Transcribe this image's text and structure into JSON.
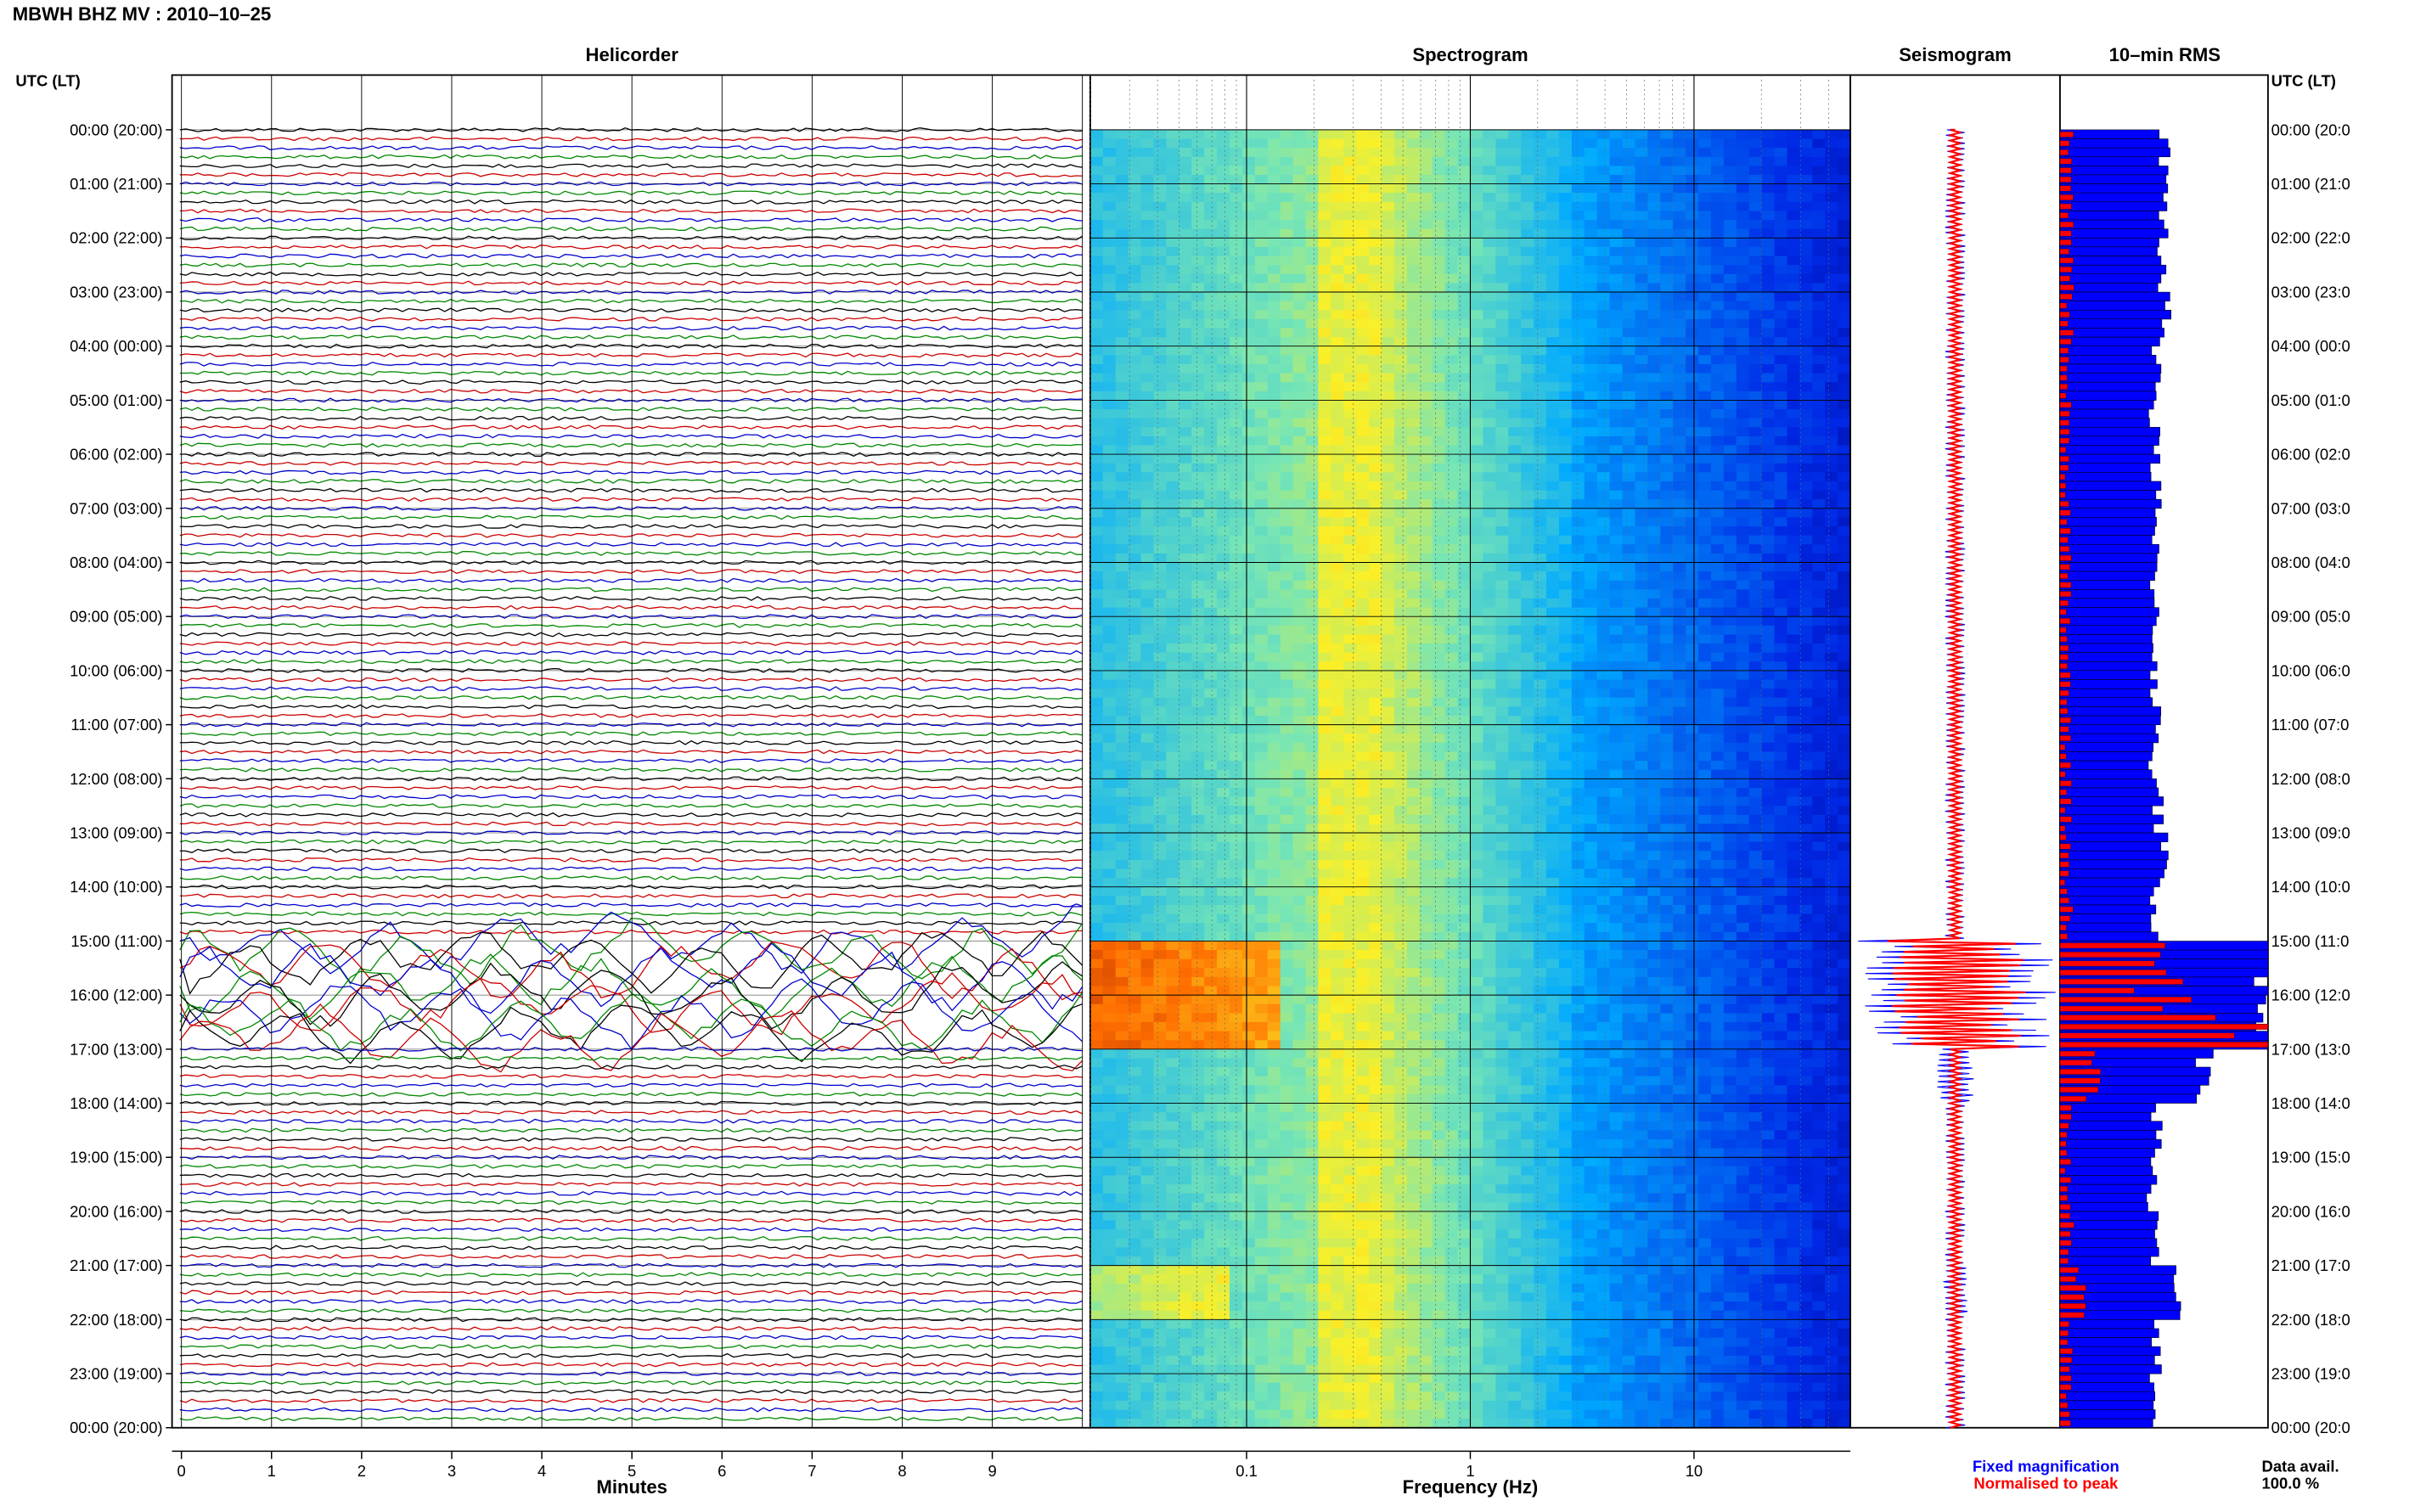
{
  "title": "MBWH BHZ MV : 2010–10–25",
  "utc_label": "UTC (LT)",
  "panels": {
    "helicorder": "Helicorder",
    "spectrogram": "Spectrogram",
    "seismogram": "Seismogram",
    "rms": "10–min RMS"
  },
  "time_labels": [
    "00:00 (20:00)",
    "01:00 (21:00)",
    "02:00 (22:00)",
    "03:00 (23:00)",
    "04:00 (00:00)",
    "05:00 (01:00)",
    "06:00 (02:00)",
    "07:00 (03:00)",
    "08:00 (04:00)",
    "09:00 (05:00)",
    "10:00 (06:00)",
    "11:00 (07:00)",
    "12:00 (08:00)",
    "13:00 (09:00)",
    "14:00 (10:00)",
    "15:00 (11:00)",
    "16:00 (12:00)",
    "17:00 (13:00)",
    "18:00 (14:00)",
    "19:00 (15:00)",
    "20:00 (16:00)",
    "21:00 (17:00)",
    "22:00 (18:00)",
    "23:00 (19:00)",
    "00:00 (20:00)"
  ],
  "time_labels_right": [
    "00:00 (20:0",
    "01:00 (21:0",
    "02:00 (22:0",
    "03:00 (23:0",
    "04:00 (00:0",
    "05:00 (01:0",
    "06:00 (02:0",
    "07:00 (03:0",
    "08:00 (04:0",
    "09:00 (05:0",
    "10:00 (06:0",
    "11:00 (07:0",
    "12:00 (08:0",
    "13:00 (09:0",
    "14:00 (10:0",
    "15:00 (11:0",
    "16:00 (12:0",
    "17:00 (13:0",
    "18:00 (14:0",
    "19:00 (15:0",
    "20:00 (16:0",
    "21:00 (17:0",
    "22:00 (18:0",
    "23:00 (19:0",
    "00:00 (20:0"
  ],
  "x_axis": {
    "helicorder_label": "Minutes",
    "helicorder_ticks": [
      "0",
      "1",
      "2",
      "3",
      "4",
      "5",
      "6",
      "7",
      "8",
      "9"
    ],
    "spectrogram_label": "Frequency (Hz)",
    "spectrogram_ticks": [
      "0.1",
      "1",
      "10"
    ]
  },
  "legend": {
    "fixed": "Fixed magnification",
    "normalised": "Normalised to peak",
    "fixed_color": "#0000ff",
    "normalised_color": "#ff0000"
  },
  "data_avail": {
    "label": "Data avail.",
    "value": "100.0 %"
  },
  "chart_data": [
    {
      "type": "line",
      "title": "Helicorder",
      "xlabel": "Minutes",
      "xlim": [
        0,
        10
      ],
      "ylim": [
        0,
        24
      ],
      "trace_colors": [
        "#000000",
        "#cc0000",
        "#0000cc",
        "#008800"
      ],
      "traces_per_hour": 6,
      "high_amplitude_hours": [
        15,
        17
      ]
    },
    {
      "type": "heatmap",
      "title": "Spectrogram",
      "xlabel": "Frequency (Hz)",
      "x_scale": "log",
      "xlim": [
        0.02,
        50
      ],
      "ylim": [
        0,
        24
      ],
      "energetic_band_hz": [
        0.2,
        0.4
      ],
      "low_freq_burst_hours": [
        15,
        17
      ]
    },
    {
      "type": "line",
      "title": "Seismogram",
      "series": [
        {
          "name": "Fixed magnification",
          "color": "#0000ff"
        },
        {
          "name": "Normalised to peak",
          "color": "#ff0000"
        }
      ],
      "ylim": [
        0,
        24
      ]
    },
    {
      "type": "bar",
      "title": "10–min RMS",
      "orientation": "horizontal",
      "ylim": [
        0,
        24
      ],
      "series": [
        {
          "name": "Fixed magnification",
          "color": "#0000ff",
          "hourly_relative": [
            0.5,
            0.5,
            0.49,
            0.5,
            0.47,
            0.45,
            0.46,
            0.45,
            0.46,
            0.46,
            0.46,
            0.45,
            0.47,
            0.49,
            0.46,
            1.0,
            1.0,
            0.7,
            0.47,
            0.44,
            0.45,
            0.55,
            0.47,
            0.46
          ]
        },
        {
          "name": "Normalised to peak",
          "color": "#ff0000",
          "hourly_relative": [
            0.05,
            0.05,
            0.05,
            0.05,
            0.04,
            0.04,
            0.04,
            0.04,
            0.04,
            0.04,
            0.04,
            0.04,
            0.04,
            0.04,
            0.05,
            0.45,
            0.8,
            0.2,
            0.04,
            0.04,
            0.05,
            0.09,
            0.05,
            0.04
          ]
        }
      ]
    }
  ]
}
